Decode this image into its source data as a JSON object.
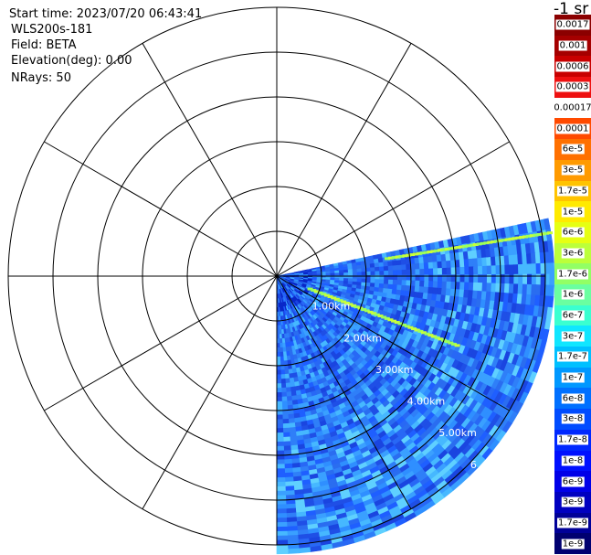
{
  "info": {
    "start_time": "Start time: 2023/07/20 06:43:41",
    "instrument": "WLS200s-181",
    "field": "Field: BETA",
    "elevation": "Elevation(deg): 0.00",
    "nrays": "NRays: 50"
  },
  "colorbar": {
    "unit_label": "-1 sr",
    "levels": [
      {
        "label": "0.0017",
        "color": "#8b0000"
      },
      {
        "label": "0.001",
        "color": "#a50000"
      },
      {
        "label": "0.0006",
        "color": "#c80000"
      },
      {
        "label": "0.0003",
        "color": "#ee1010"
      },
      {
        "label": "0.00017",
        "color": "#ffffff"
      },
      {
        "label": "0.0001",
        "color": "#ff4a00"
      },
      {
        "label": "6e-5",
        "color": "#ff7000"
      },
      {
        "label": "3e-5",
        "color": "#ff9a00"
      },
      {
        "label": "1.7e-5",
        "color": "#ffc300"
      },
      {
        "label": "1e-5",
        "color": "#ffea00"
      },
      {
        "label": "6e-6",
        "color": "#e6ff12"
      },
      {
        "label": "3e-6",
        "color": "#bcff3a"
      },
      {
        "label": "1.7e-6",
        "color": "#92ff64"
      },
      {
        "label": "1e-6",
        "color": "#6affa0"
      },
      {
        "label": "6e-7",
        "color": "#3affd0"
      },
      {
        "label": "3e-7",
        "color": "#10e6ff"
      },
      {
        "label": "1.7e-7",
        "color": "#00c0ff"
      },
      {
        "label": "1e-7",
        "color": "#0098ff"
      },
      {
        "label": "6e-8",
        "color": "#0070ff"
      },
      {
        "label": "3e-8",
        "color": "#004cff"
      },
      {
        "label": "1.7e-8",
        "color": "#0028ff"
      },
      {
        "label": "1e-8",
        "color": "#0010ff"
      },
      {
        "label": "6e-9",
        "color": "#0000e8"
      },
      {
        "label": "3e-9",
        "color": "#0000c0"
      },
      {
        "label": "1.7e-9",
        "color": "#000098"
      },
      {
        "label": "1e-9",
        "color": "#000070"
      }
    ]
  },
  "chart_data": {
    "type": "heatmap",
    "projection": "polar PPI",
    "range_rings_km": [
      1,
      2,
      3,
      4,
      5,
      6
    ],
    "ring_labels": [
      "1.00km",
      "2.00km",
      "3.00km",
      "4.00km",
      "5.00km",
      "6"
    ],
    "radial_lines_every_deg": 30,
    "sector_azimuth_deg": [
      78,
      180
    ],
    "max_range_km": 6.2,
    "features": [
      {
        "kind": "streak",
        "azimuth_deg": 81,
        "from_km": 2.5,
        "to_km": 6.2,
        "value_approx": "1.7e-6"
      },
      {
        "kind": "streak",
        "azimuth_deg": 111,
        "from_km": 0.8,
        "to_km": 4.4,
        "value_approx": "3e-6"
      }
    ]
  }
}
